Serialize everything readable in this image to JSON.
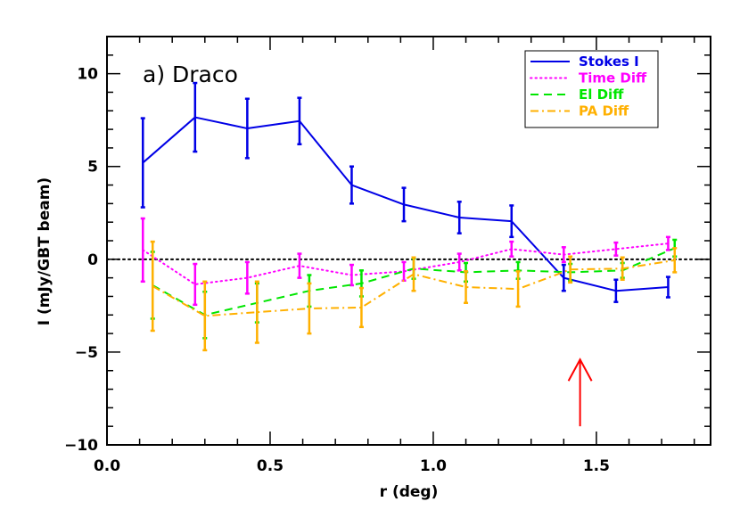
{
  "chart_data": {
    "type": "line",
    "panel_label": "a) Draco",
    "xlabel": "r (deg)",
    "ylabel": "I (mJy/GBT beam)",
    "xlim": [
      0.0,
      1.85
    ],
    "ylim": [
      -10,
      12
    ],
    "x_ticks": [
      {
        "value": 0.0,
        "label": "0.0"
      },
      {
        "value": 0.5,
        "label": "0.5"
      },
      {
        "value": 1.0,
        "label": "1.0"
      },
      {
        "value": 1.5,
        "label": "1.5"
      }
    ],
    "y_ticks": [
      {
        "value": -10,
        "label": "−10"
      },
      {
        "value": -5,
        "label": "−5"
      },
      {
        "value": 0,
        "label": "0"
      },
      {
        "value": 5,
        "label": "5"
      },
      {
        "value": 10,
        "label": "10"
      }
    ],
    "zero_line": true,
    "legend_position": "top-right",
    "series": [
      {
        "name": "Stokes I",
        "color": "#0000e6",
        "dash": "solid",
        "x": [
          0.11,
          0.27,
          0.43,
          0.59,
          0.75,
          0.91,
          1.08,
          1.24,
          1.4,
          1.56,
          1.72
        ],
        "y": [
          5.2,
          7.65,
          7.05,
          7.45,
          4.0,
          2.95,
          2.25,
          2.05,
          -1.0,
          -1.7,
          -1.5
        ],
        "err": [
          2.4,
          1.85,
          1.6,
          1.25,
          1.0,
          0.9,
          0.85,
          0.85,
          0.7,
          0.6,
          0.55
        ]
      },
      {
        "name": "Time Diff",
        "color": "#ff00ff",
        "dash": "dotted",
        "x": [
          0.11,
          0.27,
          0.43,
          0.59,
          0.75,
          0.91,
          1.08,
          1.24,
          1.4,
          1.56,
          1.72
        ],
        "y": [
          0.5,
          -1.35,
          -1.0,
          -0.35,
          -0.85,
          -0.65,
          -0.15,
          0.55,
          0.25,
          0.55,
          0.85
        ],
        "err": [
          1.7,
          1.1,
          0.85,
          0.65,
          0.55,
          0.5,
          0.45,
          0.4,
          0.4,
          0.35,
          0.35
        ]
      },
      {
        "name": "El Diff",
        "color": "#00e600",
        "dash": "dashed",
        "x": [
          0.14,
          0.3,
          0.46,
          0.62,
          0.78,
          0.94,
          1.1,
          1.26,
          1.42,
          1.58,
          1.74
        ],
        "y": [
          -1.4,
          -3.0,
          -2.35,
          -1.7,
          -1.3,
          -0.5,
          -0.7,
          -0.6,
          -0.7,
          -0.6,
          0.6
        ],
        "err": [
          1.8,
          1.25,
          1.05,
          0.85,
          0.7,
          0.55,
          0.5,
          0.45,
          0.45,
          0.4,
          0.45
        ]
      },
      {
        "name": "PA Diff",
        "color": "#ffb000",
        "dash": "dashdot",
        "x": [
          0.14,
          0.3,
          0.46,
          0.62,
          0.78,
          0.94,
          1.1,
          1.26,
          1.42,
          1.58,
          1.74
        ],
        "y": [
          -1.45,
          -3.05,
          -2.85,
          -2.65,
          -2.6,
          -0.8,
          -1.5,
          -1.6,
          -0.55,
          -0.5,
          -0.05
        ],
        "err": [
          2.4,
          1.85,
          1.65,
          1.35,
          1.05,
          0.9,
          0.85,
          0.95,
          0.7,
          0.6,
          0.65
        ]
      }
    ],
    "annotations": [
      {
        "type": "arrow",
        "color": "#ff0000",
        "x": 1.45,
        "y_from": -9.0,
        "y_to": -5.4
      }
    ]
  }
}
